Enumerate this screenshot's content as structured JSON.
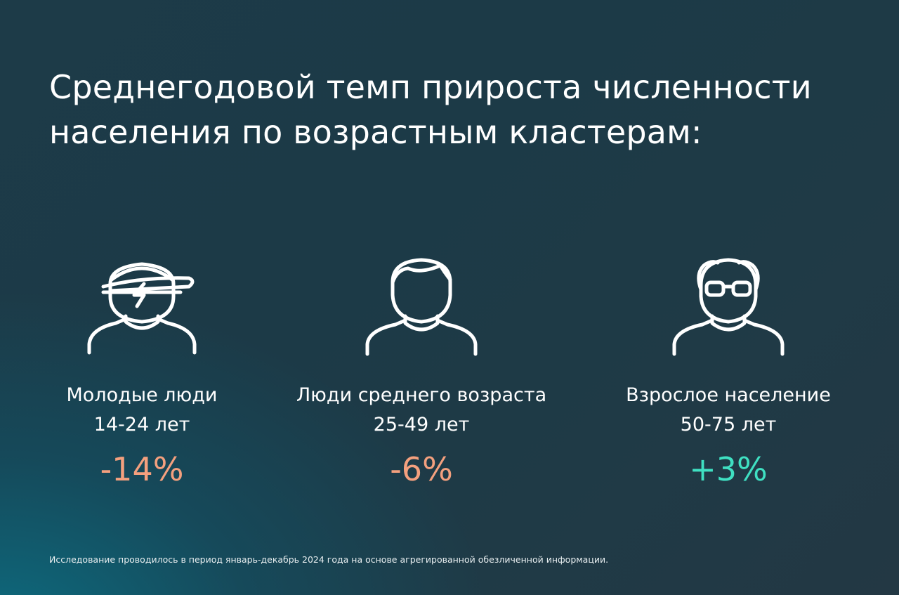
{
  "title": {
    "line1": "Среднегодовой темп прироста численности",
    "line2": "населения по возрастным кластерам:"
  },
  "clusters": [
    {
      "name_line1": "Молодые люди",
      "name_line2": "14-24 лет",
      "value": "-14%",
      "icon": "young-person-cap-icon",
      "value_color": "#f4a07e"
    },
    {
      "name_line1": "Люди среднего возраста",
      "name_line2": "25-49 лет",
      "value": "-6%",
      "icon": "middle-aged-person-icon",
      "value_color": "#f4a07e"
    },
    {
      "name_line1": "Взрослое население",
      "name_line2": "50-75 лет",
      "value": "+3%",
      "icon": "elderly-person-glasses-icon",
      "value_color": "#3fe0c2"
    }
  ],
  "footnote": "Исследование проводилось в период январь-декабрь 2024 года на основе агрегированной обезличенной информации."
}
